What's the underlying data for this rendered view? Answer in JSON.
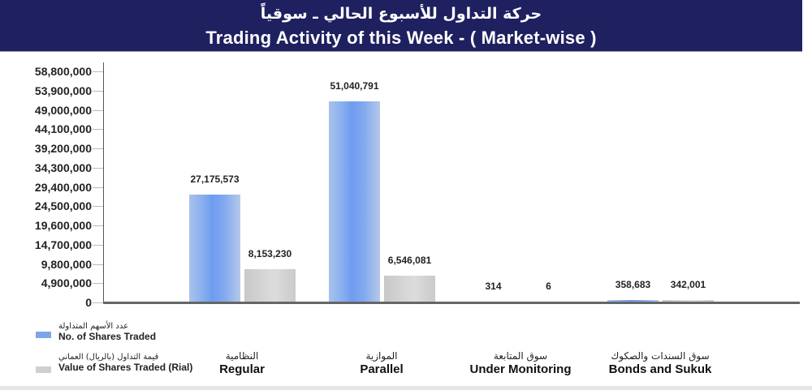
{
  "header": {
    "title_ar": "حركة التداول للأسبوع الحالي ـ سوقياً",
    "title_en": "Trading Activity of this Week - ( Market-wise )"
  },
  "legend": [
    {
      "label_ar": "عدد الأسهم المتداولة",
      "label_en": "No. of Shares Traded",
      "color": "#7ea5ea"
    },
    {
      "label_ar": "قيمة التداول (بالريال) العماني",
      "label_en": "Value of Shares Traded (Rial)",
      "color": "#cfcfcf"
    }
  ],
  "y_ticks": [
    "58,800,000",
    "53,900,000",
    "49,000,000",
    "44,100,000",
    "39,200,000",
    "34,300,000",
    "29,400,000",
    "24,500,000",
    "19,600,000",
    "14,700,000",
    "9,800,000",
    "4,900,000",
    "0"
  ],
  "categories": [
    {
      "label_ar": "النظامية",
      "label_en": "Regular",
      "shares_label": "27,175,573",
      "value_label": "8,153,230"
    },
    {
      "label_ar": "الموازية",
      "label_en": "Parallel",
      "shares_label": "51,040,791",
      "value_label": "6,546,081"
    },
    {
      "label_ar": "سوق المتابعة",
      "label_en": "Under Monitoring",
      "shares_label": "314",
      "value_label": "6"
    },
    {
      "label_ar": "سوق السندات والصكوك",
      "label_en": "Bonds and Sukuk",
      "shares_label": "358,683",
      "value_label": "342,001"
    }
  ],
  "chart_data": {
    "type": "bar",
    "title": "Trading Activity of this Week - ( Market-wise )",
    "subtitle": "حركة التداول للأسبوع الحالي ـ سوقياً",
    "categories": [
      "Regular",
      "Parallel",
      "Under Monitoring",
      "Bonds and Sukuk"
    ],
    "series": [
      {
        "name": "No. of Shares Traded",
        "values": [
          27175573,
          51040791,
          314,
          358683
        ],
        "color": "#7ea5ea"
      },
      {
        "name": "Value of Shares Traded (Rial)",
        "values": [
          8153230,
          6546081,
          6,
          342001
        ],
        "color": "#cfcfcf"
      }
    ],
    "xlabel": "",
    "ylabel": "",
    "ylim": [
      0,
      58800000
    ],
    "yticks": [
      0,
      4900000,
      9800000,
      14700000,
      19600000,
      24500000,
      29400000,
      34300000,
      39200000,
      44100000,
      49000000,
      53900000,
      58800000
    ],
    "grid": false,
    "legend_position": "bottom-left",
    "data_labels": true
  }
}
